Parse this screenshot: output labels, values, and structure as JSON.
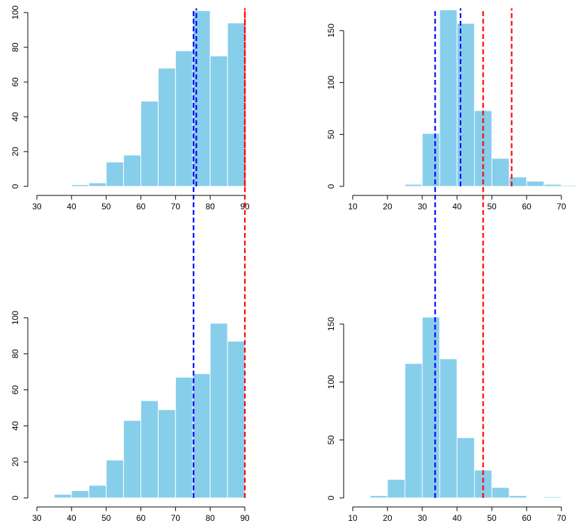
{
  "chart_data": [
    {
      "type": "bar",
      "bins": [
        [
          30,
          35
        ],
        [
          35,
          40
        ],
        [
          40,
          45
        ],
        [
          45,
          50
        ],
        [
          50,
          55
        ],
        [
          55,
          60
        ],
        [
          60,
          65
        ],
        [
          65,
          70
        ],
        [
          70,
          75
        ],
        [
          75,
          80
        ],
        [
          80,
          85
        ],
        [
          85,
          90
        ]
      ],
      "values": [
        0,
        0,
        1,
        2,
        14,
        18,
        49,
        68,
        78,
        101,
        75,
        94
      ],
      "xlim": [
        30,
        90
      ],
      "ylim": [
        0,
        100
      ],
      "x_ticks": [
        "30",
        "40",
        "50",
        "60",
        "70",
        "80",
        "90"
      ],
      "y_ticks": [
        "0",
        "20",
        "40",
        "60",
        "80",
        "100"
      ],
      "vlines": [
        {
          "x": 76,
          "color": "#0000ff"
        },
        {
          "x": 90,
          "color": "#ff0000"
        }
      ]
    },
    {
      "type": "bar",
      "bins": [
        [
          10,
          15
        ],
        [
          15,
          20
        ],
        [
          20,
          25
        ],
        [
          25,
          30
        ],
        [
          30,
          35
        ],
        [
          35,
          40
        ],
        [
          40,
          45
        ],
        [
          45,
          50
        ],
        [
          50,
          55
        ],
        [
          55,
          60
        ],
        [
          60,
          65
        ],
        [
          65,
          70
        ],
        [
          70,
          75
        ]
      ],
      "values": [
        0,
        0,
        0,
        2,
        51,
        170,
        157,
        73,
        27,
        9,
        5,
        2,
        1
      ],
      "xlim": [
        10,
        70
      ],
      "ylim": [
        0,
        150
      ],
      "x_ticks": [
        "10",
        "20",
        "30",
        "40",
        "50",
        "60",
        "70"
      ],
      "y_ticks": [
        "0",
        "50",
        "100",
        "150"
      ],
      "vlines": [
        {
          "x": 41,
          "color": "#0000ff"
        },
        {
          "x": 55.7,
          "color": "#ff0000"
        }
      ]
    },
    {
      "type": "bar",
      "bins": [
        [
          35,
          40
        ],
        [
          40,
          45
        ],
        [
          45,
          50
        ],
        [
          50,
          55
        ],
        [
          55,
          60
        ],
        [
          60,
          65
        ],
        [
          65,
          70
        ],
        [
          70,
          75
        ],
        [
          75,
          80
        ],
        [
          80,
          85
        ],
        [
          85,
          90
        ]
      ],
      "values": [
        2,
        4,
        7,
        21,
        43,
        54,
        49,
        67,
        69,
        97,
        87
      ],
      "xlim": [
        30,
        90
      ],
      "ylim": [
        0,
        100
      ],
      "x_ticks": [
        "30",
        "40",
        "50",
        "60",
        "70",
        "80",
        "90"
      ],
      "y_ticks": [
        "0",
        "20",
        "40",
        "60",
        "80",
        "100"
      ],
      "vlines": [
        {
          "x": 75.2,
          "color": "#0000ff"
        },
        {
          "x": 90,
          "color": "#ff0000"
        }
      ]
    },
    {
      "type": "bar",
      "bins": [
        [
          15,
          20
        ],
        [
          20,
          25
        ],
        [
          25,
          30
        ],
        [
          30,
          35
        ],
        [
          35,
          40
        ],
        [
          40,
          45
        ],
        [
          45,
          50
        ],
        [
          50,
          55
        ],
        [
          55,
          60
        ],
        [
          60,
          65
        ],
        [
          65,
          70
        ]
      ],
      "values": [
        2,
        16,
        116,
        156,
        120,
        52,
        24,
        9,
        2,
        0,
        1
      ],
      "xlim": [
        10,
        70
      ],
      "ylim": [
        0,
        150
      ],
      "x_ticks": [
        "10",
        "20",
        "30",
        "40",
        "50",
        "60",
        "70"
      ],
      "y_ticks": [
        "0",
        "50",
        "100",
        "150"
      ],
      "vlines": [
        {
          "x": 33.7,
          "color": "#0000ff"
        },
        {
          "x": 47.5,
          "color": "#ff0000"
        }
      ]
    }
  ],
  "colors": {
    "bar_fill": "#87ceeb",
    "bar_border": "#ffffff",
    "axis": "#000000"
  }
}
